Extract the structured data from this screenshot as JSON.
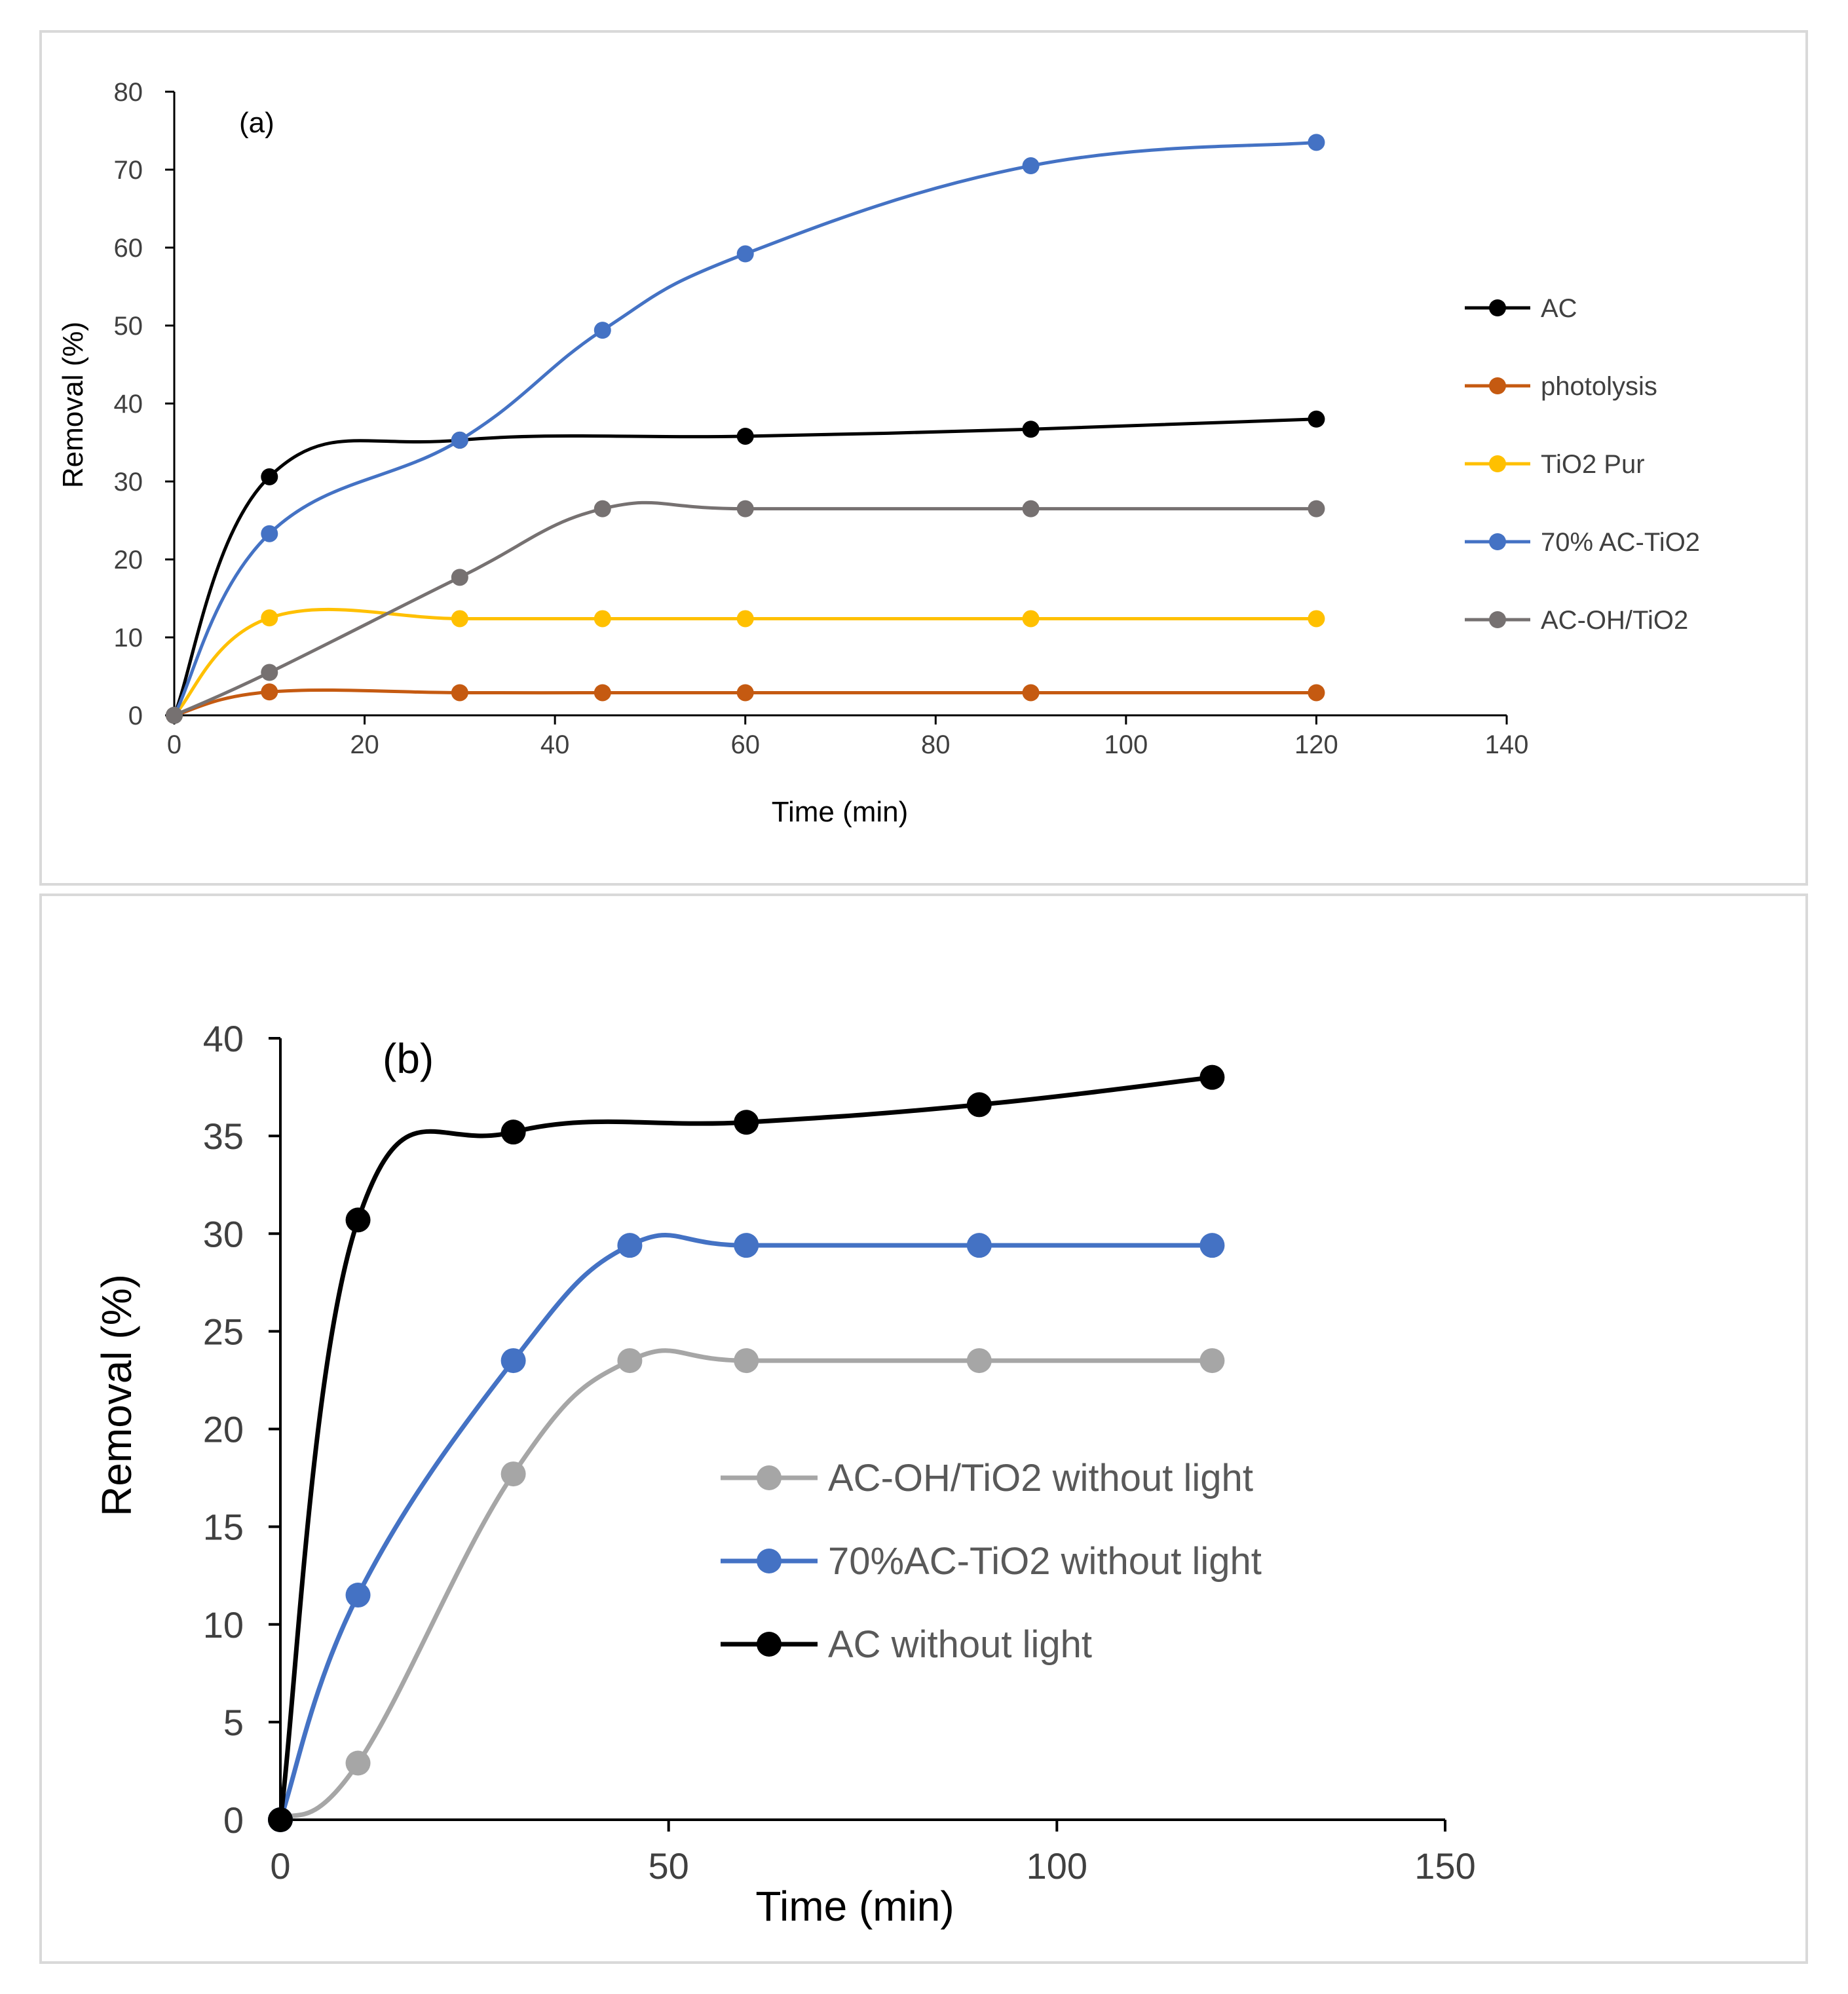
{
  "chart_data": [
    {
      "type": "line",
      "panel_label": "(a)",
      "xlabel": "Time (min)",
      "ylabel": "Removal (%)",
      "xlim": [
        0,
        140
      ],
      "ylim": [
        0,
        80
      ],
      "xticks": [
        0,
        20,
        40,
        60,
        80,
        100,
        120,
        140
      ],
      "yticks": [
        0,
        10,
        20,
        30,
        40,
        50,
        60,
        70,
        80
      ],
      "grid": false,
      "legend_position": "right",
      "series": [
        {
          "name": "AC",
          "color": "#000000",
          "x": [
            0,
            10,
            30,
            60,
            90,
            120
          ],
          "y": [
            0,
            30.6,
            35.3,
            35.8,
            36.7,
            38.0
          ]
        },
        {
          "name": "photolysis",
          "color": "#c55a11",
          "x": [
            0,
            10,
            30,
            45,
            60,
            90,
            120
          ],
          "y": [
            0,
            3.0,
            2.9,
            2.9,
            2.9,
            2.9,
            2.9
          ]
        },
        {
          "name": " TiO2 Pur",
          "color": "#ffc000",
          "x": [
            0,
            10,
            30,
            45,
            60,
            90,
            120
          ],
          "y": [
            0,
            12.5,
            12.4,
            12.4,
            12.4,
            12.4,
            12.4
          ]
        },
        {
          "name": "70% AC-TiO2",
          "color": "#4472c4",
          "x": [
            0,
            10,
            30,
            45,
            60,
            90,
            120
          ],
          "y": [
            0,
            23.3,
            35.3,
            49.4,
            59.2,
            70.5,
            73.5
          ]
        },
        {
          "name": "AC-OH/TiO2",
          "color": "#767171",
          "x": [
            0,
            10,
            30,
            45,
            60,
            90,
            120
          ],
          "y": [
            0,
            5.5,
            17.7,
            26.5,
            26.5,
            26.5,
            26.5
          ]
        }
      ]
    },
    {
      "type": "line",
      "panel_label": "(b)",
      "xlabel": "Time (min)",
      "ylabel": "Removal (%)",
      "xlim": [
        0,
        150
      ],
      "ylim": [
        0,
        40
      ],
      "xticks": [
        0,
        50,
        100,
        150
      ],
      "yticks": [
        0,
        5,
        10,
        15,
        20,
        25,
        30,
        35,
        40
      ],
      "grid": false,
      "legend_position": "center-right",
      "series": [
        {
          "name": "AC-OH/TiO2 without light",
          "color": "#a6a6a6",
          "x": [
            0,
            10,
            30,
            45,
            60,
            90,
            120
          ],
          "y": [
            0,
            2.9,
            17.7,
            23.5,
            23.5,
            23.5,
            23.5
          ]
        },
        {
          "name": "70%AC-TiO2 without light",
          "color": "#4472c4",
          "x": [
            0,
            10,
            30,
            45,
            60,
            90,
            120
          ],
          "y": [
            0,
            11.5,
            23.5,
            29.4,
            29.4,
            29.4,
            29.4
          ]
        },
        {
          "name": "AC without light",
          "color": "#000000",
          "x": [
            0,
            10,
            30,
            60,
            90,
            120
          ],
          "y": [
            0,
            30.7,
            35.2,
            35.7,
            36.6,
            38.0
          ]
        }
      ]
    }
  ]
}
